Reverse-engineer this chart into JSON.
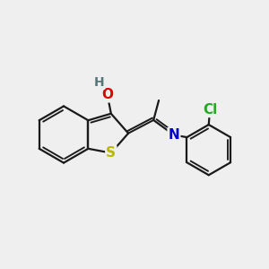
{
  "bg_color": "#efefef",
  "bond_color": "#1a1a1a",
  "bond_width": 1.6,
  "atom_colors": {
    "S": "#b8b800",
    "O": "#dd0000",
    "N": "#0000cc",
    "Cl": "#22aa22",
    "H": "#557777"
  },
  "font_size": 11,
  "fig_size": [
    3.0,
    3.0
  ],
  "dpi": 100
}
